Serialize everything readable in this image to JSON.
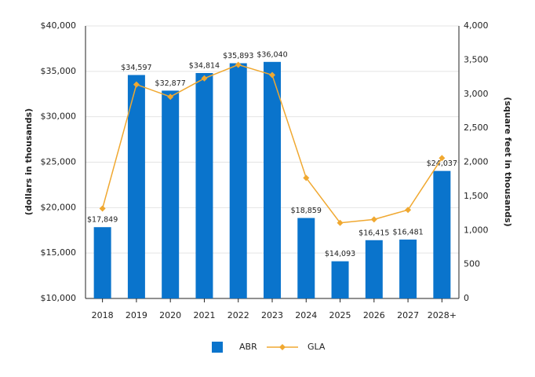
{
  "chart_data": {
    "type": "combo",
    "categories": [
      "2018",
      "2019",
      "2020",
      "2021",
      "2022",
      "2023",
      "2024",
      "2025",
      "2026",
      "2027",
      "2028+"
    ],
    "y_label": "(dollars in thousands)",
    "y2_label": "(square feet in thousands)",
    "series": [
      {
        "name": "ABR",
        "type": "bar",
        "color": "#0a74cc",
        "values": [
          17849,
          34597,
          32877,
          34814,
          35893,
          36040,
          18859,
          14093,
          16415,
          16481,
          24037
        ],
        "value_labels": [
          "$17,849",
          "$34,597",
          "$32,877",
          "$34,814",
          "$35,893",
          "$36,040",
          "$18,859",
          "$14,093",
          "$16,415",
          "$16,481",
          "$24,037"
        ]
      },
      {
        "name": "GLA",
        "type": "line",
        "axis": "y2",
        "color": "#f0a830",
        "values": [
          1320,
          3140,
          2960,
          3230,
          3430,
          3280,
          1770,
          1110,
          1160,
          1300,
          2060
        ]
      }
    ],
    "ylim": [
      10000,
      40000
    ],
    "yticks": [
      {
        "value": 10000,
        "label": "$10,000"
      },
      {
        "value": 15000,
        "label": "$15,000"
      },
      {
        "value": 20000,
        "label": "$20,000"
      },
      {
        "value": 25000,
        "label": "$25,000"
      },
      {
        "value": 30000,
        "label": "$30,000"
      },
      {
        "value": 35000,
        "label": "$35,000"
      },
      {
        "value": 40000,
        "label": "$40,000"
      }
    ],
    "y2lim": [
      0,
      4000
    ],
    "y2ticks": [
      0,
      500,
      {
        "value": 1000,
        "label": "1,000"
      },
      {
        "value": 1500,
        "label": "1,500"
      },
      {
        "value": 2000,
        "label": "2,000"
      },
      {
        "value": 2500,
        "label": "2,500"
      },
      {
        "value": 3000,
        "label": "3,000"
      },
      {
        "value": 3500,
        "label": "3,500"
      },
      {
        "value": 4000,
        "label": "4,000"
      }
    ],
    "grid": true
  }
}
